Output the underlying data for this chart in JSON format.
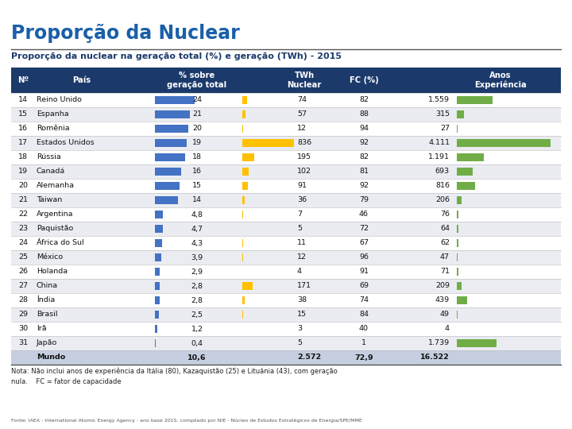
{
  "title": "Proporção da Nuclear",
  "subtitle": "Proporção da nuclear na geração total (%) e geração (TWh) - 2015",
  "footnote": "Nota: Não inclui anos de experiência da Itália (80), Kazaquistão (25) e Lituânia (43), com geração\nnula.    FC = fator de capacidade",
  "source": "Fonte: IAEA - International Atomic Energy Agency - ano base 2015, compilado por NIE - Núcleo de Estudos Estratégicos de Energia/SPE/MME",
  "header_bg": "#1b3a6b",
  "header_text": "#ffffff",
  "title_color": "#1a5fa8",
  "bar_pct_color": "#4472c4",
  "bar_twh_color": "#ffc000",
  "bar_anos_color": "#70ad47",
  "max_pct": 24,
  "max_twh": 836,
  "max_anos": 4111,
  "rows": [
    {
      "no": 14,
      "pais": "Reino Unido",
      "pct": 24,
      "twh": 74,
      "fc": 82,
      "anos": 1559
    },
    {
      "no": 15,
      "pais": "Espanha",
      "pct": 21,
      "twh": 57,
      "fc": 88,
      "anos": 315
    },
    {
      "no": 16,
      "pais": "Romênia",
      "pct": 20,
      "twh": 12,
      "fc": 94,
      "anos": 27
    },
    {
      "no": 17,
      "pais": "Estados Unidos",
      "pct": 19,
      "twh": 836,
      "fc": 92,
      "anos": 4111
    },
    {
      "no": 18,
      "pais": "Rússia",
      "pct": 18,
      "twh": 195,
      "fc": 82,
      "anos": 1191
    },
    {
      "no": 19,
      "pais": "Canadá",
      "pct": 16,
      "twh": 102,
      "fc": 81,
      "anos": 693
    },
    {
      "no": 20,
      "pais": "Alemanha",
      "pct": 15,
      "twh": 91,
      "fc": 92,
      "anos": 816
    },
    {
      "no": 21,
      "pais": "Taiwan",
      "pct": 14,
      "twh": 36,
      "fc": 79,
      "anos": 206
    },
    {
      "no": 22,
      "pais": "Argentina",
      "pct": 4.8,
      "twh": 7,
      "fc": 46,
      "anos": 76
    },
    {
      "no": 23,
      "pais": "Paquistão",
      "pct": 4.7,
      "twh": 5,
      "fc": 72,
      "anos": 64
    },
    {
      "no": 24,
      "pais": "África do Sul",
      "pct": 4.3,
      "twh": 11,
      "fc": 67,
      "anos": 62
    },
    {
      "no": 25,
      "pais": "México",
      "pct": 3.9,
      "twh": 12,
      "fc": 96,
      "anos": 47
    },
    {
      "no": 26,
      "pais": "Holanda",
      "pct": 2.9,
      "twh": 4,
      "fc": 91,
      "anos": 71
    },
    {
      "no": 27,
      "pais": "China",
      "pct": 2.8,
      "twh": 171,
      "fc": 69,
      "anos": 209
    },
    {
      "no": 28,
      "pais": "Índia",
      "pct": 2.8,
      "twh": 38,
      "fc": 74,
      "anos": 439
    },
    {
      "no": 29,
      "pais": "Brasil",
      "pct": 2.5,
      "twh": 15,
      "fc": 84,
      "anos": 49
    },
    {
      "no": 30,
      "pais": "Irã",
      "pct": 1.2,
      "twh": 3,
      "fc": 40,
      "anos": 4
    },
    {
      "no": 31,
      "pais": "Japão",
      "pct": 0.4,
      "twh": 5,
      "fc": 1,
      "anos": 1739
    }
  ],
  "mundo": {
    "pct": 10.6,
    "twh": 2572,
    "fc": 72.9,
    "anos": 16522
  }
}
